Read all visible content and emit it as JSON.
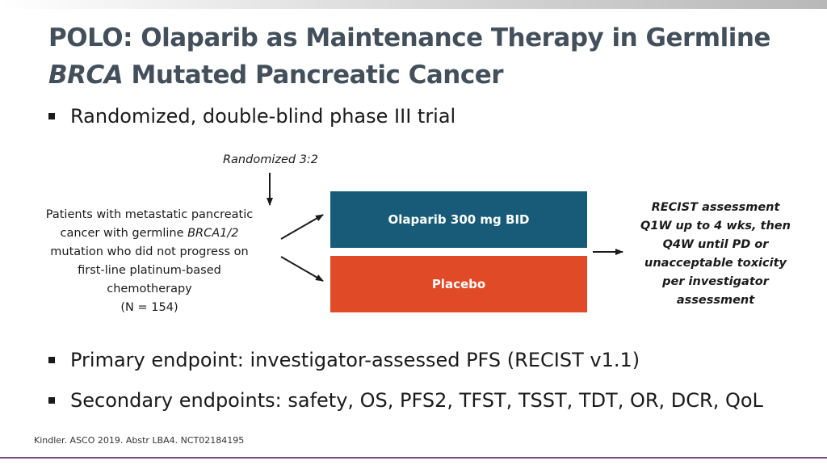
{
  "title": {
    "line1": "POLO: Olaparib as Maintenance Therapy in Germline",
    "line2_italic": "BRCA",
    "line2_rest": " Mutated Pancreatic Cancer"
  },
  "bullets": [
    "Randomized, double-blind phase III trial",
    "Primary endpoint: investigator-assessed PFS (RECIST v1.1)",
    "Secondary endpoints: safety, OS, PFS2, TFST, TSST, TDT, OR, DCR, QoL"
  ],
  "diagram": {
    "randomized_label": "Randomized 3:2",
    "patients": {
      "line1": "Patients with metastatic pancreatic",
      "line2_pre": "cancer with germline ",
      "line2_italic": "BRCA1/2",
      "line3": "mutation who did not progress on",
      "line4": "first-line platinum-based",
      "line5": "chemotherapy",
      "line6": "(N = 154)"
    },
    "arms": [
      {
        "label": "Olaparib 300 mg BID",
        "color": "#175b78"
      },
      {
        "label": "Placebo",
        "color": "#e04a26"
      }
    ],
    "recist": [
      "RECIST assessment",
      "Q1W up to 4 wks, then",
      "Q4W until PD or",
      "unacceptable toxicity",
      "per investigator",
      "assessment"
    ]
  },
  "footer": "Kindler. ASCO 2019. Abstr LBA4. NCT02184195",
  "colors": {
    "title": "#43505c",
    "olaparib": "#175b78",
    "placebo": "#e04a26",
    "accent_line": "#7b4d8c"
  }
}
